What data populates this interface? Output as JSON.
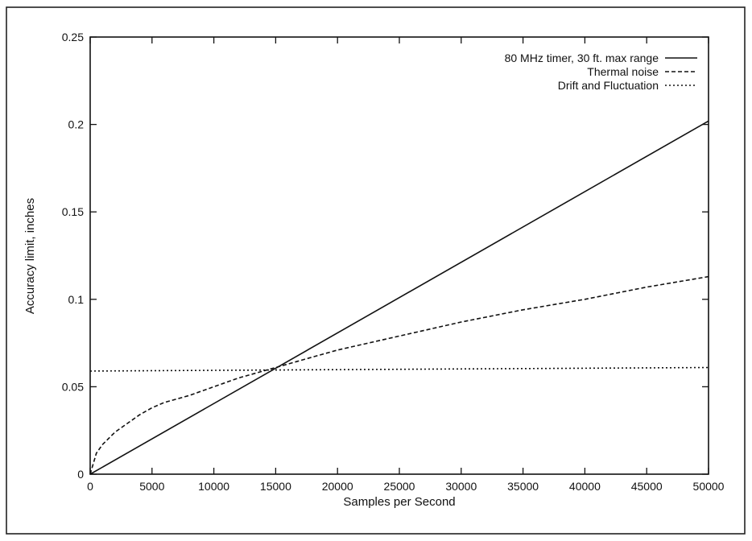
{
  "chart_data": {
    "type": "line",
    "title": "",
    "xlabel": "Samples per Second",
    "ylabel": "Accuracy limit, inches",
    "xlim": [
      0,
      50000
    ],
    "ylim": [
      0,
      0.25
    ],
    "xticks": [
      0,
      5000,
      10000,
      15000,
      20000,
      25000,
      30000,
      35000,
      40000,
      45000,
      50000
    ],
    "xtick_labels": [
      "0",
      "5000",
      "10000",
      "15000",
      "20000",
      "25000",
      "30000",
      "35000",
      "40000",
      "45000",
      "50000"
    ],
    "yticks": [
      0,
      0.05,
      0.1,
      0.15,
      0.2,
      0.25
    ],
    "ytick_labels": [
      "0",
      "0.05",
      "0.1",
      "0.15",
      "0.2",
      "0.25"
    ],
    "grid": false,
    "legend_position": "top-right",
    "series": [
      {
        "name": "80 MHz timer, 30 ft. max range",
        "style": "solid",
        "x": [
          0,
          50000
        ],
        "y": [
          0,
          0.202
        ]
      },
      {
        "name": "Thermal noise",
        "style": "dashed",
        "x": [
          0,
          500,
          1000,
          2000,
          3000,
          4000,
          5000,
          6000,
          8000,
          10000,
          12000,
          15000,
          17500,
          20000,
          22500,
          25000,
          30000,
          35000,
          40000,
          45000,
          50000
        ],
        "y": [
          0,
          0.012,
          0.017,
          0.024,
          0.029,
          0.034,
          0.038,
          0.041,
          0.045,
          0.05,
          0.055,
          0.061,
          0.066,
          0.071,
          0.075,
          0.079,
          0.087,
          0.094,
          0.1,
          0.107,
          0.113
        ]
      },
      {
        "name": "Drift and Fluctuation",
        "style": "dotted",
        "x": [
          0,
          50000
        ],
        "y": [
          0.059,
          0.061
        ]
      }
    ]
  }
}
